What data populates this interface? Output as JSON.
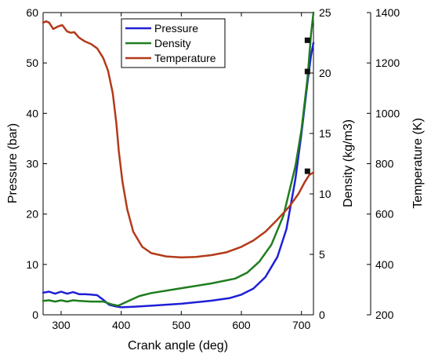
{
  "chart_data": {
    "type": "line",
    "title": "",
    "xlabel": "Crank angle (deg)",
    "xlim": [
      270,
      720
    ],
    "x_ticks": [
      300,
      400,
      500,
      600,
      700
    ],
    "axes": [
      {
        "id": "pressure",
        "label": "Pressure (bar)",
        "lim": [
          0,
          60
        ],
        "ticks": [
          0,
          10,
          20,
          30,
          40,
          50,
          60
        ],
        "position": "left"
      },
      {
        "id": "density",
        "label": "Density (kg/m3)",
        "lim": [
          0,
          25
        ],
        "ticks": [
          0,
          5,
          10,
          15,
          20,
          25
        ],
        "position": "right"
      },
      {
        "id": "temperature",
        "label": "Temperature (K)",
        "lim": [
          200,
          1400
        ],
        "ticks": [
          200,
          400,
          600,
          800,
          1000,
          1200,
          1400
        ],
        "position": "right-offset"
      }
    ],
    "series": [
      {
        "name": "Pressure",
        "axis": "pressure",
        "color": "#1f1fd6",
        "points": [
          [
            270,
            4.4
          ],
          [
            280,
            4.6
          ],
          [
            290,
            4.2
          ],
          [
            300,
            4.6
          ],
          [
            310,
            4.2
          ],
          [
            320,
            4.5
          ],
          [
            330,
            4.1
          ],
          [
            340,
            4.1
          ],
          [
            350,
            4.0
          ],
          [
            360,
            3.9
          ],
          [
            370,
            3.0
          ],
          [
            380,
            2.0
          ],
          [
            390,
            1.7
          ],
          [
            400,
            1.5
          ],
          [
            420,
            1.6
          ],
          [
            450,
            1.8
          ],
          [
            500,
            2.2
          ],
          [
            550,
            2.8
          ],
          [
            580,
            3.3
          ],
          [
            600,
            4.0
          ],
          [
            620,
            5.2
          ],
          [
            640,
            7.5
          ],
          [
            660,
            11.5
          ],
          [
            675,
            17
          ],
          [
            690,
            27
          ],
          [
            700,
            36
          ],
          [
            710,
            46
          ],
          [
            716,
            51.5
          ],
          [
            720,
            54
          ]
        ]
      },
      {
        "name": "Density",
        "axis": "density",
        "color": "#1e7d1e",
        "points": [
          [
            270,
            1.15
          ],
          [
            280,
            1.2
          ],
          [
            290,
            1.1
          ],
          [
            300,
            1.2
          ],
          [
            310,
            1.1
          ],
          [
            320,
            1.2
          ],
          [
            330,
            1.15
          ],
          [
            350,
            1.1
          ],
          [
            370,
            1.1
          ],
          [
            385,
            0.85
          ],
          [
            395,
            0.75
          ],
          [
            410,
            1.1
          ],
          [
            430,
            1.55
          ],
          [
            450,
            1.8
          ],
          [
            500,
            2.2
          ],
          [
            550,
            2.6
          ],
          [
            590,
            3.0
          ],
          [
            610,
            3.5
          ],
          [
            630,
            4.4
          ],
          [
            650,
            5.8
          ],
          [
            670,
            8.2
          ],
          [
            690,
            12.3
          ],
          [
            700,
            15.3
          ],
          [
            710,
            19.5
          ],
          [
            716,
            23.2
          ],
          [
            720,
            25
          ]
        ]
      },
      {
        "name": "Temperature",
        "axis": "temperature",
        "color": "#b33a1a",
        "points": [
          [
            270,
            1360
          ],
          [
            275,
            1365
          ],
          [
            280,
            1360
          ],
          [
            287,
            1335
          ],
          [
            295,
            1345
          ],
          [
            302,
            1350
          ],
          [
            310,
            1325
          ],
          [
            316,
            1320
          ],
          [
            322,
            1322
          ],
          [
            330,
            1300
          ],
          [
            340,
            1285
          ],
          [
            350,
            1275
          ],
          [
            360,
            1258
          ],
          [
            370,
            1220
          ],
          [
            378,
            1170
          ],
          [
            386,
            1080
          ],
          [
            392,
            960
          ],
          [
            396,
            850
          ],
          [
            402,
            730
          ],
          [
            410,
            620
          ],
          [
            420,
            530
          ],
          [
            435,
            470
          ],
          [
            450,
            445
          ],
          [
            475,
            432
          ],
          [
            500,
            428
          ],
          [
            525,
            430
          ],
          [
            550,
            437
          ],
          [
            575,
            448
          ],
          [
            600,
            470
          ],
          [
            620,
            495
          ],
          [
            640,
            530
          ],
          [
            660,
            578
          ],
          [
            680,
            630
          ],
          [
            695,
            680
          ],
          [
            705,
            725
          ],
          [
            713,
            755
          ],
          [
            720,
            765
          ]
        ]
      }
    ],
    "markers": [
      {
        "axis": "pressure",
        "x": 710,
        "y": 54.5
      },
      {
        "axis": "pressure",
        "x": 710,
        "y": 48.3
      },
      {
        "axis": "pressure",
        "x": 710,
        "y": 28.5
      }
    ],
    "legend": {
      "placement": "top-center",
      "entries": [
        "Pressure",
        "Density",
        "Temperature"
      ]
    },
    "grid": false
  }
}
